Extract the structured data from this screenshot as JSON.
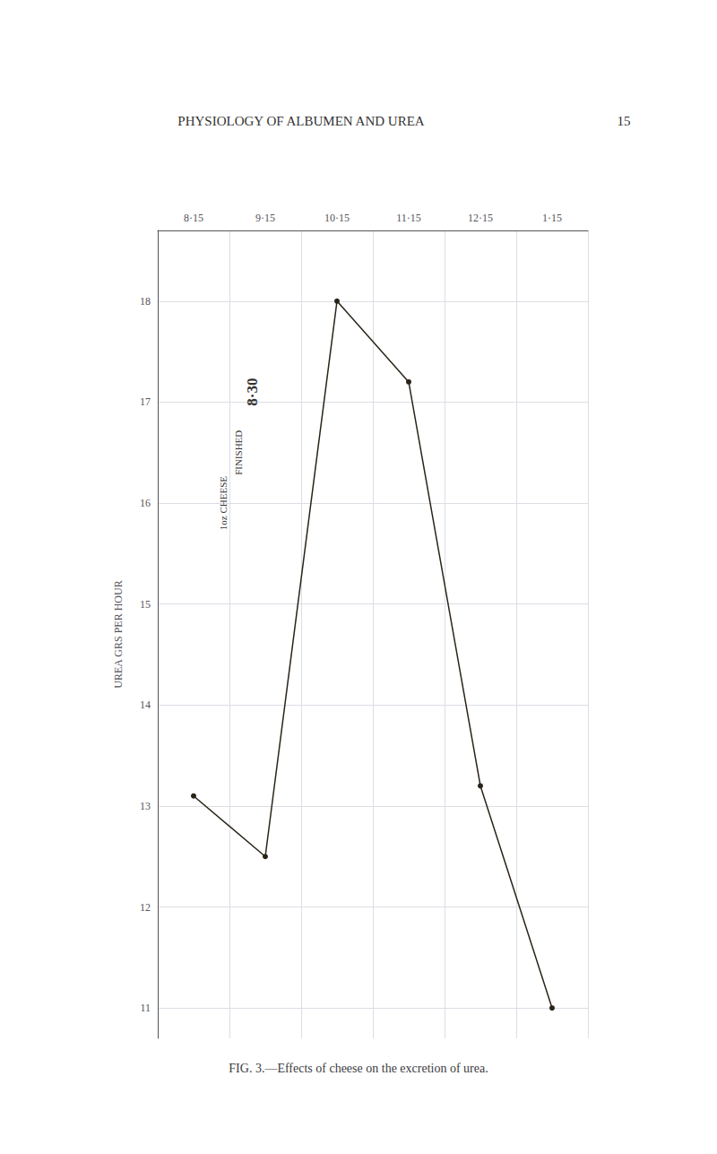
{
  "chart_data": {
    "type": "line",
    "title": "FIG. 3.—Effects of cheese on the excretion of urea.",
    "categories": [
      "8·15",
      "9·15",
      "10·15",
      "11·15",
      "12·15",
      "1·15"
    ],
    "values": [
      13.1,
      12.5,
      18.0,
      17.2,
      13.2,
      11.0
    ],
    "color": "#2a2318",
    "y_label": "UREA GRS PER HOUR",
    "ylim": [
      10.7,
      18.7
    ],
    "yticks": [
      11,
      12,
      13,
      14,
      15,
      16,
      17,
      18
    ],
    "grid": true,
    "annotations": [
      "1oz CHEESE",
      "FINISHED",
      "8·30",
      "PHYSIOLOGY OF ALBUMEN AND UREA",
      "15"
    ]
  }
}
